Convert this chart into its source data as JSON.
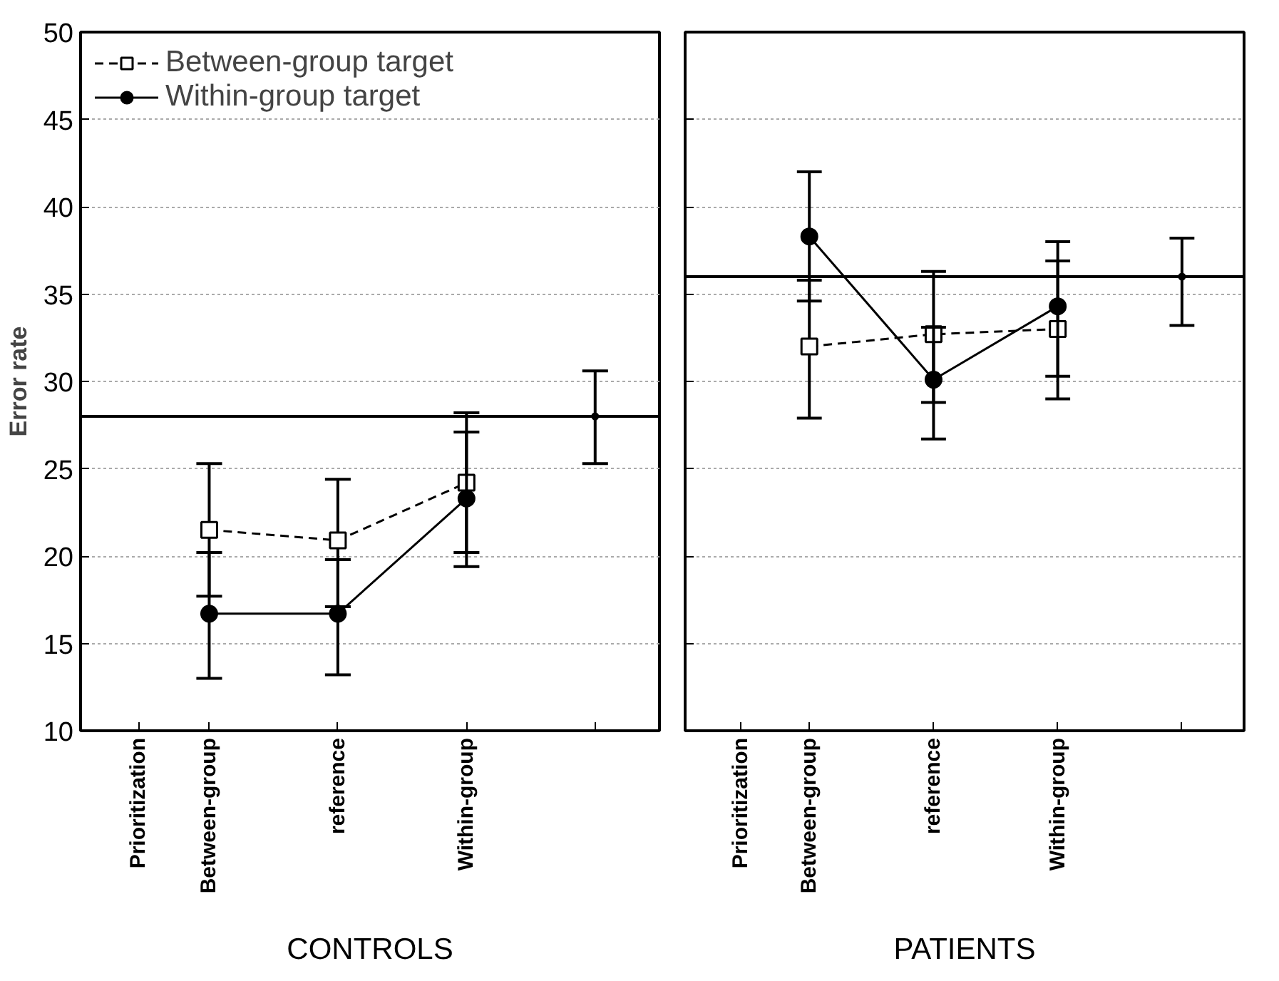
{
  "chart_data": [
    {
      "type": "line",
      "xlabel": "CONTROLS",
      "ylabel": "Error rate",
      "annotations": [
        "Prioritization"
      ],
      "categories": [
        "Between-group",
        "reference",
        "Within-group",
        null
      ],
      "ylim": [
        10,
        50
      ],
      "yticks": [
        10,
        15,
        20,
        25,
        30,
        35,
        40,
        45,
        50
      ],
      "grid": "y",
      "legend": "top left",
      "series": [
        {
          "name": "Between-group target",
          "color": "#000000",
          "marker": "square",
          "line_style": "dashed",
          "values": [
            21.5,
            20.9,
            24.2,
            null
          ],
          "errors": [
            [
              17.7,
              25.3
            ],
            [
              17.1,
              24.4
            ],
            [
              20.2,
              28.2
            ],
            null
          ]
        },
        {
          "name": "Within-group target",
          "color": "#000000",
          "marker": "circle",
          "line_style": "solid",
          "values": [
            16.7,
            16.7,
            23.3,
            null
          ],
          "errors": [
            [
              13.0,
              20.2
            ],
            [
              13.2,
              19.8
            ],
            [
              19.4,
              27.1
            ],
            null
          ]
        },
        {
          "color": "#000000",
          "marker": "circle",
          "values": [
            null,
            null,
            null,
            28.0
          ],
          "errors": [
            null,
            null,
            null,
            [
              25.3,
              30.6
            ]
          ]
        }
      ],
      "ref_lines": [
        {
          "axis": "y",
          "value": 28.0,
          "color": "#000000"
        }
      ]
    },
    {
      "type": "line",
      "xlabel": "PATIENTS",
      "annotations": [
        "Prioritization"
      ],
      "categories": [
        "Between-group",
        "reference",
        "Within-group",
        null
      ],
      "ylim": [
        10,
        50
      ],
      "yticks": [
        10,
        15,
        20,
        25,
        30,
        35,
        40,
        45,
        50
      ],
      "grid": "y",
      "tick_labels": "x",
      "series": [
        {
          "color": "#000000",
          "marker": "square",
          "line_style": "dashed",
          "values": [
            32.0,
            32.7,
            33.0,
            null
          ],
          "errors": [
            [
              27.9,
              35.8
            ],
            [
              28.8,
              36.3
            ],
            [
              29.0,
              36.9
            ],
            null
          ]
        },
        {
          "color": "#000000",
          "marker": "circle",
          "line_style": "solid",
          "values": [
            38.3,
            30.1,
            34.3,
            null
          ],
          "errors": [
            [
              34.6,
              42.0
            ],
            [
              26.7,
              33.1
            ],
            [
              30.3,
              38.0
            ],
            null
          ]
        },
        {
          "color": "#000000",
          "marker": "circle",
          "values": [
            null,
            null,
            null,
            36.0
          ],
          "errors": [
            null,
            null,
            null,
            [
              33.2,
              38.2
            ]
          ]
        }
      ],
      "ref_lines": [
        {
          "axis": "y",
          "value": 36.0,
          "color": "#000000"
        }
      ]
    }
  ]
}
